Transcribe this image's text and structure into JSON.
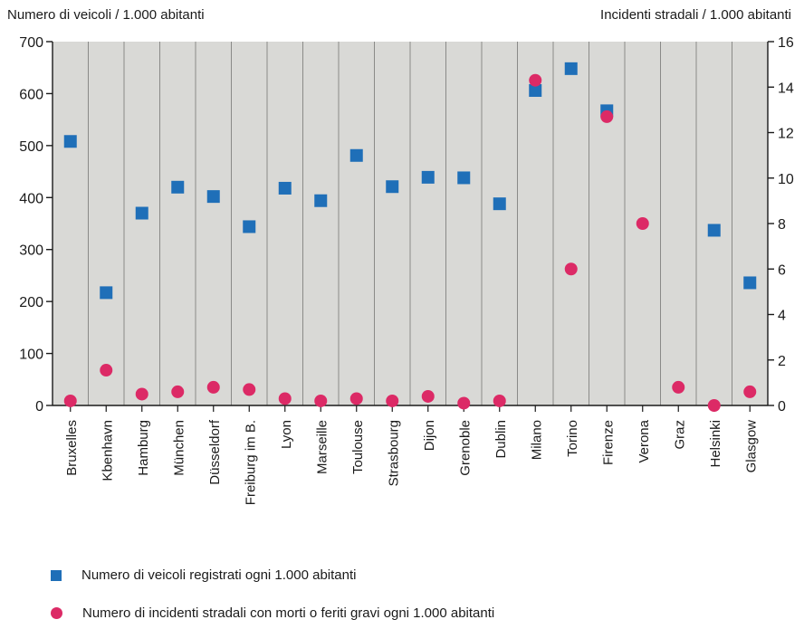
{
  "chart_data": {
    "type": "scatter",
    "y_left_label": "Numero di veicoli / 1.000 abitanti",
    "y_right_label": "Incidenti stradali / 1.000 abitanti",
    "y_left_lim": [
      0,
      700
    ],
    "y_left_ticks": [
      0,
      100,
      200,
      300,
      400,
      500,
      600,
      700
    ],
    "y_right_lim": [
      0,
      16
    ],
    "y_right_ticks": [
      0,
      2,
      4,
      6,
      8,
      10,
      12,
      14,
      16
    ],
    "categories": [
      "Bruxelles",
      "Kbenhavn",
      "Hamburg",
      "München",
      "Düsseldorf",
      "Freiburg im B.",
      "Lyon",
      "Marseille",
      "Toulouse",
      "Strasbourg",
      "Dijon",
      "Grenoble",
      "Dublin",
      "Milano",
      "Torino",
      "Firenze",
      "Verona",
      "Graz",
      "Helsinki",
      "Glasgow"
    ],
    "series": [
      {
        "name": "Numero di veicoli registrati ogni 1.000 abitanti",
        "axis": "left",
        "marker": "square",
        "color": "#1f6fb8",
        "values": [
          508,
          217,
          370,
          420,
          402,
          344,
          418,
          394,
          481,
          421,
          439,
          438,
          388,
          606,
          648,
          567,
          null,
          null,
          337,
          236
        ]
      },
      {
        "name": "Numero di incidenti stradali con morti o feriti gravi ogni 1.000 abitanti",
        "axis": "right",
        "marker": "circle",
        "color": "#dc2a66",
        "values": [
          0.2,
          1.55,
          0.5,
          0.6,
          0.8,
          0.7,
          0.3,
          0.2,
          0.3,
          0.2,
          0.4,
          0.1,
          0.2,
          14.3,
          6.0,
          12.7,
          8.0,
          0.8,
          0.0,
          0.6
        ]
      }
    ],
    "grid": "vertical",
    "plot_background": "#d9d9d6",
    "legend_position": "bottom-left"
  }
}
